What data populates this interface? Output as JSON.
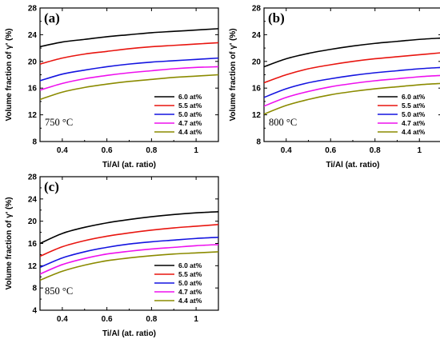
{
  "chart_data": [
    {
      "type": "line",
      "panel_label": "(a)",
      "annotation": "750 °C",
      "xlabel": "Ti/Al (at. ratio)",
      "ylabel": "Volume fraction of γ' (%)",
      "xlim": [
        0.3,
        1.1
      ],
      "ylim": [
        8,
        28
      ],
      "xticks": [
        0.4,
        0.6,
        0.8,
        1.0
      ],
      "yticks": [
        8,
        12,
        16,
        20,
        24,
        28
      ],
      "legend_position": "bottom-right",
      "series": [
        {
          "name": "6.0 at%",
          "color": "#000000",
          "x": [
            0.3,
            0.4,
            0.5,
            0.6,
            0.7,
            0.8,
            0.9,
            1.0,
            1.1
          ],
          "y": [
            22.2,
            22.9,
            23.3,
            23.7,
            24.0,
            24.3,
            24.5,
            24.7,
            24.9
          ]
        },
        {
          "name": "5.5 at%",
          "color": "#e8150f",
          "x": [
            0.3,
            0.4,
            0.5,
            0.6,
            0.7,
            0.8,
            0.9,
            1.0,
            1.1
          ],
          "y": [
            19.6,
            20.5,
            21.1,
            21.5,
            21.9,
            22.2,
            22.4,
            22.6,
            22.8
          ]
        },
        {
          "name": "5.0 at%",
          "color": "#1414e0",
          "x": [
            0.3,
            0.4,
            0.5,
            0.6,
            0.7,
            0.8,
            0.9,
            1.0,
            1.1
          ],
          "y": [
            17.1,
            18.1,
            18.7,
            19.2,
            19.6,
            19.9,
            20.1,
            20.3,
            20.5
          ]
        },
        {
          "name": "4.7 at%",
          "color": "#ee10ee",
          "x": [
            0.3,
            0.4,
            0.5,
            0.6,
            0.7,
            0.8,
            0.9,
            1.0,
            1.1
          ],
          "y": [
            15.7,
            16.7,
            17.4,
            17.9,
            18.3,
            18.6,
            18.9,
            19.1,
            19.2
          ]
        },
        {
          "name": "4.4 at%",
          "color": "#8b8b00",
          "x": [
            0.3,
            0.4,
            0.5,
            0.6,
            0.7,
            0.8,
            0.9,
            1.0,
            1.1
          ],
          "y": [
            14.3,
            15.4,
            16.1,
            16.6,
            17.0,
            17.3,
            17.6,
            17.8,
            18.0
          ]
        }
      ]
    },
    {
      "type": "line",
      "panel_label": "(b)",
      "annotation": "800 °C",
      "xlabel": "Ti/Al (at. ratio)",
      "ylabel": "Volume fraction of γ' (%)",
      "xlim": [
        0.3,
        1.1
      ],
      "ylim": [
        8,
        28
      ],
      "xticks": [
        0.4,
        0.6,
        0.8,
        1.0
      ],
      "yticks": [
        8,
        12,
        16,
        20,
        24,
        28
      ],
      "legend_position": "bottom-right",
      "series": [
        {
          "name": "6.0 at%",
          "color": "#000000",
          "x": [
            0.3,
            0.4,
            0.5,
            0.6,
            0.7,
            0.8,
            0.9,
            1.0,
            1.1
          ],
          "y": [
            19.2,
            20.4,
            21.2,
            21.8,
            22.3,
            22.7,
            23.0,
            23.3,
            23.5
          ]
        },
        {
          "name": "5.5 at%",
          "color": "#e8150f",
          "x": [
            0.3,
            0.4,
            0.5,
            0.6,
            0.7,
            0.8,
            0.9,
            1.0,
            1.1
          ],
          "y": [
            16.8,
            18.0,
            18.9,
            19.5,
            20.0,
            20.4,
            20.7,
            21.0,
            21.3
          ]
        },
        {
          "name": "5.0 at%",
          "color": "#1414e0",
          "x": [
            0.3,
            0.4,
            0.5,
            0.6,
            0.7,
            0.8,
            0.9,
            1.0,
            1.1
          ],
          "y": [
            14.6,
            15.9,
            16.8,
            17.4,
            17.9,
            18.3,
            18.6,
            18.9,
            19.1
          ]
        },
        {
          "name": "4.7 at%",
          "color": "#ee10ee",
          "x": [
            0.3,
            0.4,
            0.5,
            0.6,
            0.7,
            0.8,
            0.9,
            1.0,
            1.1
          ],
          "y": [
            13.3,
            14.6,
            15.5,
            16.2,
            16.7,
            17.1,
            17.4,
            17.7,
            17.9
          ]
        },
        {
          "name": "4.4 at%",
          "color": "#8b8b00",
          "x": [
            0.3,
            0.4,
            0.5,
            0.6,
            0.7,
            0.8,
            0.9,
            1.0,
            1.1
          ],
          "y": [
            12.1,
            13.4,
            14.3,
            15.0,
            15.5,
            15.9,
            16.2,
            16.5,
            16.7
          ]
        }
      ]
    },
    {
      "type": "line",
      "panel_label": "(c)",
      "annotation": "850 °C",
      "xlabel": "Ti/Al (at. ratio)",
      "ylabel": "Volume fraction of γ' (%)",
      "xlim": [
        0.3,
        1.1
      ],
      "ylim": [
        4,
        28
      ],
      "xticks": [
        0.4,
        0.6,
        0.8,
        1.0
      ],
      "yticks": [
        4,
        8,
        12,
        16,
        20,
        24,
        28
      ],
      "legend_position": "bottom-right",
      "series": [
        {
          "name": "6.0 at%",
          "color": "#000000",
          "x": [
            0.3,
            0.4,
            0.5,
            0.6,
            0.7,
            0.8,
            0.9,
            1.0,
            1.1
          ],
          "y": [
            16.0,
            17.8,
            18.9,
            19.7,
            20.3,
            20.8,
            21.2,
            21.5,
            21.7
          ]
        },
        {
          "name": "5.5 at%",
          "color": "#e8150f",
          "x": [
            0.3,
            0.4,
            0.5,
            0.6,
            0.7,
            0.8,
            0.9,
            1.0,
            1.1
          ],
          "y": [
            13.7,
            15.4,
            16.5,
            17.3,
            17.9,
            18.4,
            18.8,
            19.1,
            19.4
          ]
        },
        {
          "name": "5.0 at%",
          "color": "#1414e0",
          "x": [
            0.3,
            0.4,
            0.5,
            0.6,
            0.7,
            0.8,
            0.9,
            1.0,
            1.1
          ],
          "y": [
            11.7,
            13.4,
            14.5,
            15.3,
            15.9,
            16.3,
            16.6,
            16.9,
            17.1
          ]
        },
        {
          "name": "4.7 at%",
          "color": "#ee10ee",
          "x": [
            0.3,
            0.4,
            0.5,
            0.6,
            0.7,
            0.8,
            0.9,
            1.0,
            1.1
          ],
          "y": [
            10.5,
            12.2,
            13.3,
            14.1,
            14.6,
            15.0,
            15.3,
            15.6,
            15.8
          ]
        },
        {
          "name": "4.4 at%",
          "color": "#8b8b00",
          "x": [
            0.3,
            0.4,
            0.5,
            0.6,
            0.7,
            0.8,
            0.9,
            1.0,
            1.1
          ],
          "y": [
            9.4,
            11.0,
            12.1,
            12.9,
            13.4,
            13.8,
            14.1,
            14.3,
            14.5
          ]
        }
      ]
    }
  ]
}
